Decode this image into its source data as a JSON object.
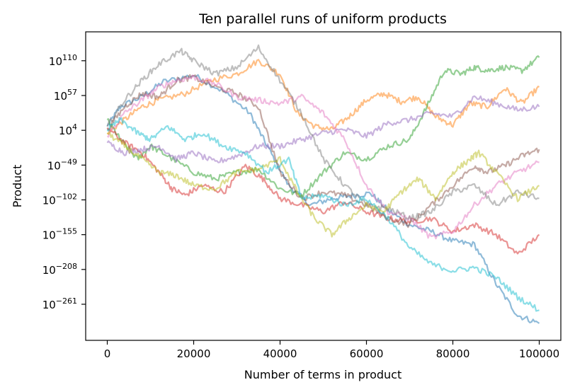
{
  "chart_data": {
    "type": "line",
    "title": "Ten parallel runs of uniform products",
    "xlabel": "Number of terms in product",
    "ylabel": "Product",
    "xlim": [
      -5000,
      105000
    ],
    "ylim_log10": [
      -316,
      154
    ],
    "yscale": "log",
    "grid": false,
    "x_ticks": [
      {
        "value": 0,
        "label": "0"
      },
      {
        "value": 20000,
        "label": "20000"
      },
      {
        "value": 40000,
        "label": "40000"
      },
      {
        "value": 60000,
        "label": "60000"
      },
      {
        "value": 80000,
        "label": "80000"
      },
      {
        "value": 100000,
        "label": "100000"
      }
    ],
    "y_ticks": [
      {
        "log10": 110,
        "base": "10",
        "exp": "110"
      },
      {
        "log10": 57,
        "base": "10",
        "exp": "57"
      },
      {
        "log10": 4,
        "base": "10",
        "exp": "4"
      },
      {
        "log10": -49,
        "base": "10",
        "exp": "−49"
      },
      {
        "log10": -102,
        "base": "10",
        "exp": "−102"
      },
      {
        "log10": -155,
        "base": "10",
        "exp": "−155"
      },
      {
        "log10": -208,
        "base": "10",
        "exp": "−208"
      },
      {
        "log10": -261,
        "base": "10",
        "exp": "−261"
      }
    ],
    "series": [
      {
        "color": "#1f77b4",
        "x": [
          0,
          3000,
          8000,
          13000,
          20000,
          27000,
          33000,
          37000,
          42000,
          47000,
          52000,
          56000,
          61000,
          65000,
          70000,
          75000,
          80000,
          85000,
          90000,
          95000,
          100000
        ],
        "log10y": [
          10,
          40,
          55,
          78,
          88,
          63,
          30,
          -20,
          -80,
          -110,
          -100,
          -96,
          -92,
          -118,
          -140,
          -150,
          -165,
          -170,
          -230,
          -278,
          -290
        ]
      },
      {
        "color": "#ff7f0e",
        "x": [
          0,
          4000,
          8000,
          12000,
          18000,
          24000,
          30000,
          35000,
          40000,
          44000,
          48000,
          52000,
          56000,
          60000,
          64000,
          68000,
          72000,
          76000,
          80000,
          84000,
          88000,
          92000,
          96000,
          100000
        ],
        "log10y": [
          0,
          20,
          40,
          50,
          60,
          80,
          90,
          110,
          90,
          30,
          10,
          5,
          25,
          50,
          60,
          48,
          55,
          25,
          12,
          45,
          40,
          68,
          45,
          70
        ]
      },
      {
        "color": "#2ca02c",
        "x": [
          0,
          3000,
          7000,
          10000,
          14000,
          20000,
          25000,
          30000,
          35000,
          40000,
          45000,
          50000,
          55000,
          60000,
          65000,
          70000,
          74000,
          78000,
          82000,
          85000,
          88000,
          92000,
          96000,
          100000
        ],
        "log10y": [
          20,
          -10,
          -40,
          -20,
          -35,
          -60,
          -70,
          -60,
          -55,
          -85,
          -95,
          -60,
          -30,
          -40,
          -20,
          -10,
          40,
          95,
          90,
          100,
          95,
          100,
          95,
          115
        ]
      },
      {
        "color": "#d62728",
        "x": [
          0,
          4000,
          8000,
          12000,
          15000,
          18000,
          22000,
          27000,
          32000,
          36000,
          40000,
          45000,
          50000,
          55000,
          60000,
          65000,
          70000,
          75000,
          80000,
          85000,
          90000,
          95000,
          100000
        ],
        "log10y": [
          8,
          -15,
          -30,
          -60,
          -85,
          -95,
          -80,
          -90,
          -50,
          -70,
          -100,
          -110,
          -120,
          -105,
          -120,
          -130,
          -135,
          -130,
          -150,
          -140,
          -155,
          -185,
          -155
        ]
      },
      {
        "color": "#9467bd",
        "x": [
          0,
          4000,
          8000,
          12000,
          16000,
          20000,
          25000,
          30000,
          35000,
          40000,
          45000,
          50000,
          55000,
          60000,
          65000,
          70000,
          75000,
          80000,
          85000,
          90000,
          95000,
          100000
        ],
        "log10y": [
          -15,
          -30,
          -25,
          -20,
          -40,
          -30,
          -45,
          -35,
          -20,
          -20,
          -10,
          0,
          5,
          -5,
          15,
          20,
          30,
          25,
          55,
          45,
          35,
          40
        ]
      },
      {
        "color": "#8c564b",
        "x": [
          0,
          4000,
          8000,
          12000,
          16000,
          20000,
          25000,
          30000,
          35000,
          40000,
          45000,
          50000,
          55000,
          60000,
          65000,
          70000,
          75000,
          80000,
          85000,
          88000,
          92000,
          96000,
          100000
        ],
        "log10y": [
          5,
          40,
          60,
          55,
          80,
          85,
          70,
          60,
          40,
          -60,
          -100,
          -90,
          -95,
          -110,
          -130,
          -140,
          -110,
          -80,
          -50,
          -60,
          -50,
          -35,
          -25
        ]
      },
      {
        "color": "#e377c2",
        "x": [
          0,
          4000,
          8000,
          12000,
          16000,
          20000,
          25000,
          30000,
          35000,
          40000,
          45000,
          50000,
          55000,
          60000,
          65000,
          70000,
          75000,
          80000,
          85000,
          90000,
          95000,
          100000
        ],
        "log10y": [
          -5,
          30,
          50,
          70,
          80,
          85,
          75,
          55,
          50,
          45,
          55,
          30,
          -10,
          -80,
          -120,
          -130,
          -160,
          -150,
          -110,
          -80,
          -60,
          -45
        ]
      },
      {
        "color": "#7f7f7f",
        "x": [
          0,
          4000,
          8000,
          12000,
          17000,
          20000,
          25000,
          30000,
          35000,
          40000,
          45000,
          50000,
          55000,
          60000,
          65000,
          70000,
          75000,
          80000,
          85000,
          90000,
          95000,
          100000
        ],
        "log10y": [
          10,
          50,
          80,
          105,
          125,
          110,
          90,
          100,
          130,
          80,
          30,
          -40,
          -80,
          -110,
          -115,
          -130,
          -120,
          -90,
          -80,
          -110,
          -90,
          -100
        ]
      },
      {
        "color": "#bcbd22",
        "x": [
          0,
          4000,
          8000,
          12000,
          16000,
          20000,
          25000,
          30000,
          35000,
          40000,
          44000,
          48000,
          52000,
          56000,
          60000,
          64000,
          68000,
          72000,
          76000,
          80000,
          84000,
          86000,
          90000,
          95000,
          100000
        ],
        "log10y": [
          0,
          -20,
          -40,
          -60,
          -65,
          -80,
          -85,
          -60,
          -55,
          -40,
          -90,
          -130,
          -155,
          -130,
          -110,
          -120,
          -90,
          -70,
          -100,
          -60,
          -40,
          -30,
          -60,
          -100,
          -80
        ]
      },
      {
        "color": "#17becf",
        "x": [
          0,
          3000,
          7000,
          10000,
          14000,
          18000,
          22000,
          27000,
          32000,
          37000,
          42000,
          45000,
          50000,
          55000,
          60000,
          65000,
          70000,
          75000,
          80000,
          85000,
          90000,
          95000,
          100000
        ],
        "log10y": [
          5,
          20,
          0,
          -10,
          10,
          -10,
          0,
          -20,
          -30,
          -60,
          -40,
          -100,
          -95,
          -110,
          -100,
          -130,
          -175,
          -200,
          -210,
          -205,
          -220,
          -250,
          -270
        ]
      }
    ]
  }
}
